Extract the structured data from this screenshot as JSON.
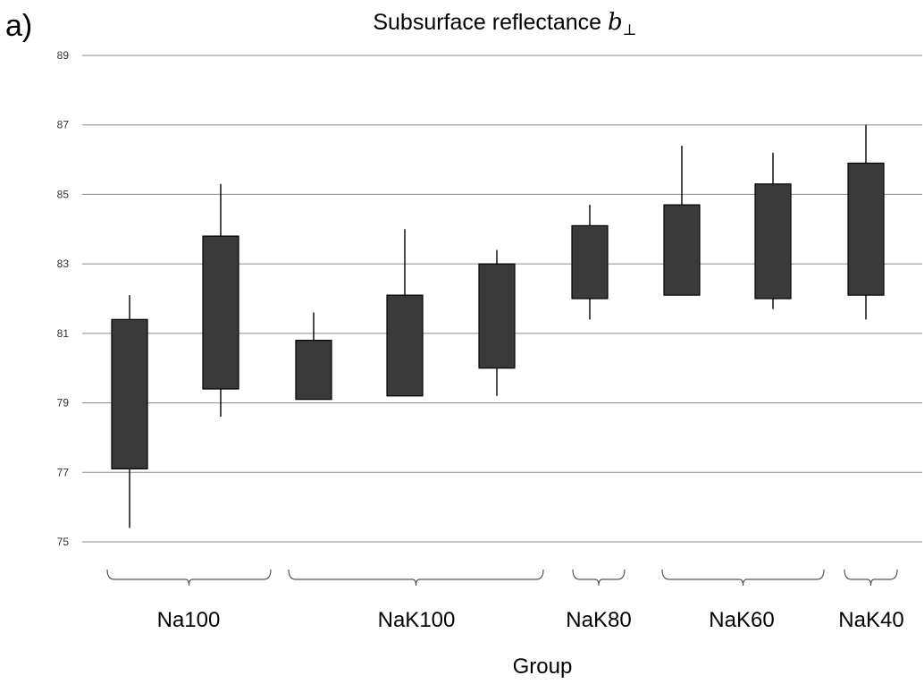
{
  "panel_label": "a)",
  "chart_data": {
    "type": "box",
    "title": "Subsurface reflectance ",
    "title_math": "b",
    "title_sub": "⊥",
    "xlabel": "Group",
    "ylabel": "",
    "ylim": [
      74,
      89
    ],
    "yticks": [
      75,
      77,
      79,
      81,
      83,
      85,
      87,
      89
    ],
    "grid": true,
    "colors": {
      "box": "#3a3a3a",
      "grid": "#8c8c8c"
    },
    "boxes": [
      {
        "whisker_low": 75.4,
        "box_low": 77.1,
        "box_high": 81.4,
        "whisker_high": 82.1
      },
      {
        "whisker_low": 78.6,
        "box_low": 79.4,
        "box_high": 83.8,
        "whisker_high": 85.3
      },
      {
        "whisker_low": 79.1,
        "box_low": 79.1,
        "box_high": 80.8,
        "whisker_high": 81.6
      },
      {
        "whisker_low": 79.2,
        "box_low": 79.2,
        "box_high": 82.1,
        "whisker_high": 84.0
      },
      {
        "whisker_low": 79.2,
        "box_low": 80.0,
        "box_high": 83.0,
        "whisker_high": 83.4
      },
      {
        "whisker_low": 81.4,
        "box_low": 82.0,
        "box_high": 84.1,
        "whisker_high": 84.7
      },
      {
        "whisker_low": 82.1,
        "box_low": 82.1,
        "box_high": 84.7,
        "whisker_high": 86.4
      },
      {
        "whisker_low": 81.7,
        "box_low": 82.0,
        "box_high": 85.3,
        "whisker_high": 86.2
      },
      {
        "whisker_low": 81.4,
        "box_low": 82.1,
        "box_high": 85.9,
        "whisker_high": 87.0
      }
    ],
    "groups": [
      {
        "label": "Na100",
        "box_indices": [
          0,
          1
        ]
      },
      {
        "label": "NaK100",
        "box_indices": [
          2,
          3,
          4
        ]
      },
      {
        "label": "NaK80",
        "box_indices": [
          5
        ]
      },
      {
        "label": "NaK60",
        "box_indices": [
          6,
          7
        ]
      },
      {
        "label": "NaK40",
        "box_indices": [
          8
        ]
      }
    ]
  }
}
